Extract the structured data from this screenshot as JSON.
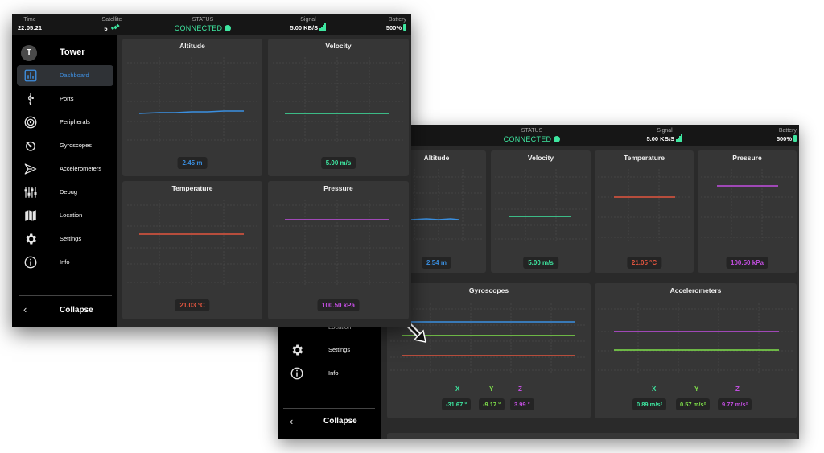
{
  "back": {
    "topbar": {
      "status_label": "STATUS",
      "status_value": "CONNECTED",
      "signal_label": "Signal",
      "signal_value": "5.00 KB/S",
      "battery_label": "Battery",
      "battery_value": "500%"
    },
    "sidebar": {
      "items": [
        {
          "label": "Location"
        },
        {
          "label": "Settings"
        },
        {
          "label": "Info"
        }
      ],
      "collapse": "Collapse"
    },
    "panels": {
      "altitude": {
        "title": "Altitude",
        "value": "2.54 m"
      },
      "velocity": {
        "title": "Velocity",
        "value": "5.00 m/s"
      },
      "temperature": {
        "title": "Temperature",
        "value": "21.05 °C"
      },
      "pressure": {
        "title": "Pressure",
        "value": "100.50 kPa"
      },
      "gyroscopes": {
        "title": "Gyroscopes",
        "x_label": "X",
        "y_label": "Y",
        "z_label": "Z",
        "x_value": "-31.67 °",
        "y_value": "-9.17 °",
        "z_value": "3.99 °"
      },
      "accelerometers": {
        "title": "Accelerometers",
        "x_label": "X",
        "y_label": "Y",
        "z_label": "Z",
        "x_value": "0.89 m/s²",
        "y_value": "0.57 m/s²",
        "z_value": "9.77 m/s²"
      }
    }
  },
  "front": {
    "topbar": {
      "time_label": "Time",
      "time_value": "22:05:21",
      "satellite_label": "Satellite",
      "satellite_value": "5",
      "status_label": "STATUS",
      "status_value": "CONNECTED",
      "signal_label": "Signal",
      "signal_value": "5.00 KB/S",
      "battery_label": "Battery",
      "battery_value": "500%"
    },
    "sidebar": {
      "avatar_letter": "T",
      "title": "Tower",
      "items": [
        {
          "label": "Dashboard",
          "icon": "chart-icon"
        },
        {
          "label": "Ports",
          "icon": "usb-icon"
        },
        {
          "label": "Peripherals",
          "icon": "target-icon"
        },
        {
          "label": "Gyroscopes",
          "icon": "gyroscope-icon"
        },
        {
          "label": "Accelerometers",
          "icon": "accelerometer-icon"
        },
        {
          "label": "Debug",
          "icon": "sliders-icon"
        },
        {
          "label": "Location",
          "icon": "map-icon"
        },
        {
          "label": "Settings",
          "icon": "gear-icon"
        },
        {
          "label": "Info",
          "icon": "info-icon"
        }
      ],
      "collapse": "Collapse"
    },
    "panels": {
      "altitude": {
        "title": "Altitude",
        "value": "2.45 m"
      },
      "velocity": {
        "title": "Velocity",
        "value": "5.00 m/s"
      },
      "temperature": {
        "title": "Temperature",
        "value": "21.03 °C"
      },
      "pressure": {
        "title": "Pressure",
        "value": "100.50 kPa"
      }
    }
  },
  "colors": {
    "altitude": "#3a8fe0",
    "velocity": "#3ee6a0",
    "temperature": "#e2553f",
    "pressure": "#c24ee0",
    "gyro_x": "#3a8fe0",
    "gyro_y": "#7fe04a",
    "gyro_z": "#e2553f",
    "acc_x": "#3ee6c0",
    "acc_y": "#7fe04a",
    "acc_z": "#c24ee0",
    "accent": "#3ee6a0"
  }
}
